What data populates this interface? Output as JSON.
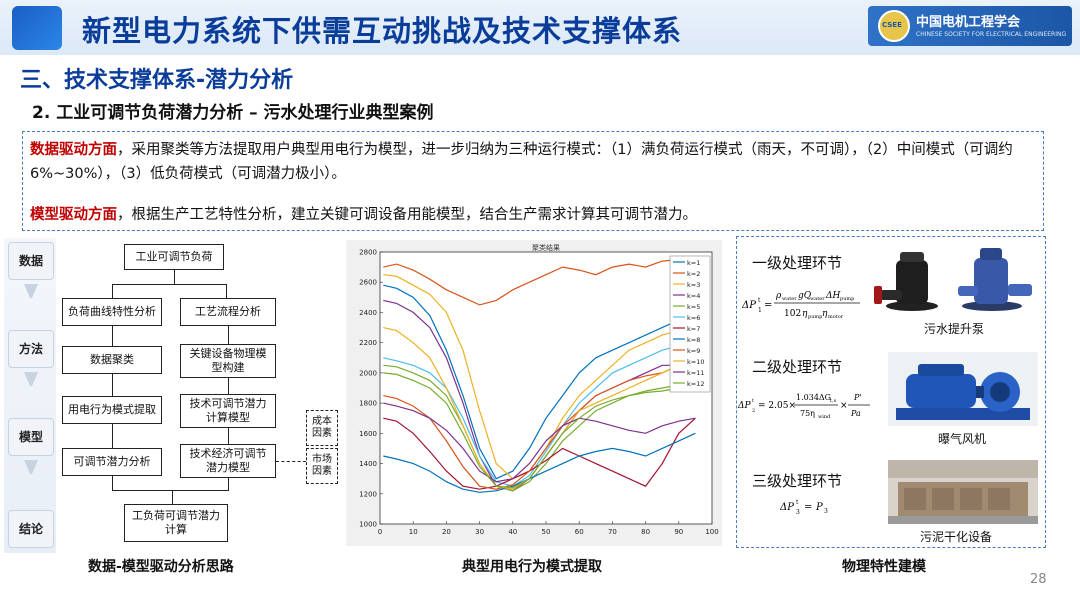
{
  "header": {
    "title": "新型电力系统下供需互动挑战及技术支撑体系",
    "logo_cn": "中国电机工程学会",
    "logo_en": "CHINESE SOCIETY FOR ELECTRICAL ENGINEERING",
    "logo_mark": "CSEE"
  },
  "section_title": "三、技术支撑体系-潜力分析",
  "subtitle": "2. 工业可调节负荷潜力分析 – 污水处理行业典型案例",
  "text_box": {
    "p1_label": "数据驱动方面",
    "p1_text": "，采用聚类等方法提取用户典型用电行为模型，进一步归纳为三种运行模式：（1）满负荷运行模式（雨天，不可调），（2）中间模式（可调约6%~30%），（3）低负荷模式（可调潜力极小）。",
    "p2_label": "模型驱动方面",
    "p2_text": "，根据生产工艺特性分析，建立关键可调设备用能模型，结合生产需求计算其可调节潜力。"
  },
  "steps": [
    "数据",
    "方法",
    "模型",
    "结论"
  ],
  "flow": {
    "top": "工业可调节负荷",
    "l1": "负荷曲线特性分析",
    "l2": "数据聚类",
    "l3": "用电行为模式提取",
    "l4": "可调节潜力分析",
    "r1": "工艺流程分析",
    "r2": "关键设备物理模型构建",
    "r3": "技术可调节潜力计算模型",
    "r4": "技术经济可调节潜力模型",
    "f1": "成本因素",
    "f2": "市场因素",
    "bottom": "工负荷可调节潜力计算",
    "caption": "数据-模型驱动分析思路"
  },
  "chart_caption": "典型用电行为模式提取",
  "chart_data": {
    "type": "line",
    "title": "聚类结果",
    "xlim": [
      0,
      100
    ],
    "ylim": [
      1000,
      2800
    ],
    "xticks": [
      "0",
      "10",
      "20",
      "30",
      "40",
      "50",
      "60",
      "70",
      "80",
      "90",
      "100"
    ],
    "yticks": [
      "1000",
      "1200",
      "1400",
      "1600",
      "1800",
      "2000",
      "2200",
      "2400",
      "2600",
      "2800"
    ],
    "grid": false,
    "legend_position": "top-right",
    "x": [
      1,
      5,
      10,
      15,
      20,
      25,
      30,
      35,
      40,
      45,
      50,
      55,
      60,
      65,
      70,
      75,
      80,
      85,
      90,
      95
    ],
    "series": [
      {
        "name": "k=1",
        "color": "#0072bd",
        "values": [
          2580,
          2560,
          2500,
          2380,
          2150,
          1850,
          1500,
          1300,
          1350,
          1500,
          1700,
          1850,
          2000,
          2100,
          2150,
          2200,
          2250,
          2300,
          2350,
          2400
        ]
      },
      {
        "name": "k=2",
        "color": "#d95319",
        "values": [
          2700,
          2720,
          2680,
          2620,
          2550,
          2500,
          2450,
          2480,
          2550,
          2600,
          2650,
          2700,
          2680,
          2650,
          2700,
          2720,
          2700,
          2740,
          2750,
          2760
        ]
      },
      {
        "name": "k=3",
        "color": "#edb120",
        "values": [
          2650,
          2640,
          2580,
          2520,
          2400,
          2150,
          1750,
          1400,
          1300,
          1350,
          1500,
          1700,
          1850,
          1950,
          2050,
          2150,
          2200,
          2250,
          2280,
          2300
        ]
      },
      {
        "name": "k=4",
        "color": "#7e2f8e",
        "values": [
          2480,
          2460,
          2400,
          2300,
          2100,
          1800,
          1450,
          1250,
          1220,
          1300,
          1450,
          1600,
          1750,
          1850,
          1900,
          1950,
          2000,
          2050,
          2050,
          2100
        ]
      },
      {
        "name": "k=5",
        "color": "#77ac30",
        "values": [
          2050,
          2040,
          2000,
          1950,
          1850,
          1650,
          1400,
          1250,
          1220,
          1280,
          1400,
          1550,
          1650,
          1750,
          1800,
          1850,
          1880,
          1900,
          1920,
          1950
        ]
      },
      {
        "name": "k=6",
        "color": "#4dbeee",
        "values": [
          2100,
          2080,
          2050,
          2000,
          1900,
          1700,
          1450,
          1280,
          1250,
          1320,
          1480,
          1650,
          1800,
          1900,
          2000,
          2050,
          2100,
          2150,
          2180,
          2200
        ]
      },
      {
        "name": "k=7",
        "color": "#a2142f",
        "values": [
          1700,
          1680,
          1600,
          1480,
          1350,
          1250,
          1230,
          1250,
          1300,
          1350,
          1420,
          1500,
          1450,
          1400,
          1350,
          1300,
          1250,
          1400,
          1600,
          1700
        ]
      },
      {
        "name": "k=8",
        "color": "#0072bd",
        "values": [
          1450,
          1430,
          1400,
          1350,
          1280,
          1230,
          1210,
          1220,
          1250,
          1300,
          1350,
          1400,
          1450,
          1480,
          1500,
          1480,
          1450,
          1500,
          1550,
          1600
        ]
      },
      {
        "name": "k=9",
        "color": "#d95319",
        "values": [
          1850,
          1830,
          1780,
          1700,
          1550,
          1380,
          1250,
          1230,
          1260,
          1350,
          1500,
          1650,
          1750,
          1850,
          1900,
          1950,
          1980,
          2000,
          2050,
          2100
        ]
      },
      {
        "name": "k=10",
        "color": "#edb120",
        "values": [
          2300,
          2280,
          2200,
          2100,
          1900,
          1650,
          1400,
          1250,
          1230,
          1300,
          1450,
          1600,
          1750,
          1800,
          1850,
          1900,
          1950,
          2000,
          2050,
          2080
        ]
      },
      {
        "name": "k=11",
        "color": "#7e2f8e",
        "values": [
          1800,
          1780,
          1750,
          1700,
          1620,
          1500,
          1350,
          1280,
          1300,
          1400,
          1550,
          1650,
          1700,
          1680,
          1650,
          1620,
          1600,
          1650,
          1680,
          1700
        ]
      },
      {
        "name": "k=12",
        "color": "#77ac30",
        "values": [
          2000,
          1990,
          1950,
          1900,
          1800,
          1600,
          1380,
          1250,
          1240,
          1300,
          1450,
          1600,
          1700,
          1780,
          1820,
          1850,
          1870,
          1880,
          1900,
          1920
        ]
      }
    ]
  },
  "model": {
    "lvl1": "一级处理环节",
    "lvl2": "二级处理环节",
    "lvl3": "三级处理环节",
    "pic1": "污水提升泵",
    "pic2": "曝气风机",
    "pic3": "污泥干化设备",
    "caption": "物理特性建模"
  },
  "page_number": "28"
}
